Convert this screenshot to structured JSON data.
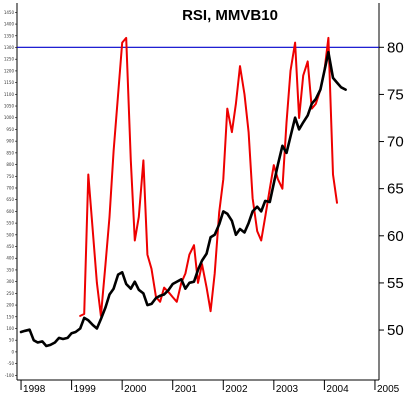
{
  "chart_data": {
    "type": "line",
    "title": "RSI, MMVB10",
    "xlabel": "",
    "ylabel": "",
    "x_ticks": [
      "1998",
      "1999",
      "2000",
      "2001",
      "2002",
      "2003",
      "2004",
      "2005"
    ],
    "xlim": [
      1997.92,
      2005.08
    ],
    "left_axis": {
      "ticks": [
        -100,
        -50,
        0,
        50,
        100,
        150,
        200,
        250,
        300,
        350,
        400,
        450,
        500,
        550,
        600,
        650,
        700,
        750,
        800,
        850,
        900,
        950,
        1000,
        1050,
        1100,
        1150,
        1200,
        1250,
        1300,
        1350,
        1400,
        1450
      ],
      "ylim": [
        -120,
        1490
      ]
    },
    "right_axis": {
      "ticks": [
        50,
        55,
        60,
        65,
        70,
        75,
        80
      ],
      "ylim": [
        44.7,
        84.7
      ]
    },
    "reference_line": {
      "axis": "right",
      "value": 80,
      "color": "#0000cc"
    },
    "series": [
      {
        "axis": "left",
        "color": "#000000",
        "x": [
          1998.0,
          1998.08,
          1998.17,
          1998.25,
          1998.33,
          1998.42,
          1998.5,
          1998.58,
          1998.67,
          1998.75,
          1998.83,
          1998.92,
          1999.0,
          1999.08,
          1999.17,
          1999.25,
          1999.33,
          1999.42,
          1999.5,
          1999.58,
          1999.67,
          1999.75,
          1999.83,
          1999.92,
          2000.0,
          2000.08,
          2000.17,
          2000.25,
          2000.33,
          2000.42,
          2000.5,
          2000.58,
          2000.67,
          2000.75,
          2000.83,
          2000.92,
          2001.0,
          2001.08,
          2001.17,
          2001.25,
          2001.33,
          2001.42,
          2001.5,
          2001.58,
          2001.67,
          2001.75,
          2001.83,
          2001.92,
          2002.0,
          2002.08,
          2002.17,
          2002.25,
          2002.33,
          2002.42,
          2002.5,
          2002.58,
          2002.67,
          2002.75,
          2002.83,
          2002.92,
          2003.0,
          2003.08,
          2003.17,
          2003.25,
          2003.33,
          2003.42,
          2003.5,
          2003.58,
          2003.67,
          2003.75,
          2003.83,
          2003.92,
          2004.0,
          2004.08,
          2004.17,
          2004.25,
          2004.33,
          2004.42
        ],
        "values": [
          85,
          90,
          95,
          50,
          40,
          45,
          25,
          30,
          40,
          60,
          55,
          60,
          80,
          85,
          100,
          145,
          135,
          115,
          100,
          140,
          190,
          245,
          270,
          330,
          340,
          290,
          270,
          300,
          265,
          250,
          200,
          205,
          230,
          240,
          245,
          265,
          290,
          300,
          310,
          270,
          295,
          300,
          350,
          390,
          420,
          490,
          500,
          545,
          600,
          590,
          560,
          500,
          525,
          510,
          550,
          600,
          620,
          600,
          645,
          640,
          720,
          800,
          880,
          850,
          920,
          1000,
          950,
          980,
          1010,
          1060,
          1080,
          1120,
          1200,
          1280,
          1170,
          1150,
          1130,
          1120
        ]
      },
      {
        "axis": "right",
        "color": "#ee0000",
        "x": [
          1999.17,
          1999.25,
          1999.33,
          1999.42,
          1999.5,
          1999.58,
          1999.67,
          1999.75,
          1999.83,
          1999.92,
          2000.0,
          2000.08,
          2000.17,
          2000.25,
          2000.33,
          2000.42,
          2000.5,
          2000.58,
          2000.67,
          2000.75,
          2000.83,
          2000.92,
          2001.0,
          2001.08,
          2001.17,
          2001.25,
          2001.33,
          2001.42,
          2001.5,
          2001.58,
          2001.67,
          2001.75,
          2001.83,
          2001.92,
          2002.0,
          2002.08,
          2002.17,
          2002.25,
          2002.33,
          2002.42,
          2002.5,
          2002.58,
          2002.67,
          2002.75,
          2002.83,
          2002.92,
          2003.0,
          2003.08,
          2003.17,
          2003.25,
          2003.33,
          2003.42,
          2003.5,
          2003.58,
          2003.67,
          2003.75,
          2003.83,
          2003.92,
          2004.0,
          2004.08,
          2004.17,
          2004.25
        ],
        "values": [
          51.5,
          51.7,
          66.5,
          60.5,
          55.0,
          51.5,
          57.0,
          62.0,
          69.0,
          75.0,
          80.5,
          81.0,
          68.0,
          59.5,
          62.0,
          68.0,
          58.0,
          56.5,
          53.5,
          53.0,
          54.5,
          54.0,
          53.5,
          53.0,
          55.0,
          56.0,
          58.0,
          59.0,
          55.0,
          57.0,
          54.5,
          52.0,
          56.0,
          62.5,
          66.0,
          73.5,
          71.0,
          74.0,
          78.0,
          75.0,
          71.0,
          64.0,
          60.5,
          59.5,
          62.0,
          65.0,
          67.5,
          66.0,
          65.0,
          72.0,
          77.5,
          80.5,
          72.5,
          77.0,
          78.5,
          73.5,
          74.0,
          75.5,
          77.5,
          81.0,
          66.5,
          63.5
        ]
      }
    ],
    "grid": false,
    "legend": "none"
  }
}
